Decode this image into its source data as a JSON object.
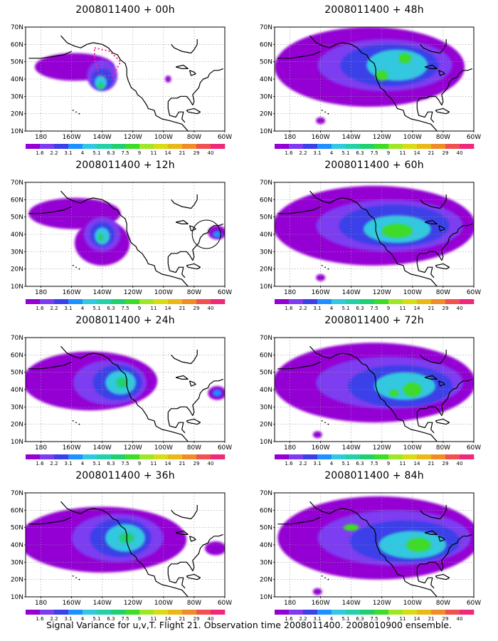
{
  "caption": "Signal Variance for u,v,T. Flight 21. Observation time 2008011400. 2008010900 ensemble.",
  "colorbar": {
    "levels": [
      "1.6",
      "2.2",
      "3.1",
      "4",
      "5.1",
      "6.3",
      "7.5",
      "9",
      "11",
      "14",
      "21",
      "29",
      "40"
    ],
    "colors": [
      "#9400d3",
      "#7d3cf0",
      "#3b40e8",
      "#1e90ff",
      "#32c8e0",
      "#24d0a8",
      "#20d070",
      "#3cdc28",
      "#a0e628",
      "#d8dc14",
      "#eab818",
      "#f08c28",
      "#f05050",
      "#f0287a"
    ]
  },
  "axes": {
    "lat_ticks": [
      "70N",
      "60N",
      "50N",
      "40N",
      "30N",
      "20N",
      "10N"
    ],
    "lon_ticks": [
      "180",
      "160W",
      "140W",
      "120W",
      "100W",
      "80W",
      "60W"
    ],
    "lat_range": [
      10,
      70
    ],
    "lon_range": [
      -190,
      -60
    ]
  },
  "chart_data": [
    {
      "type": "heatmap",
      "title": "2008011400 + 00h",
      "lead_hours": 0,
      "observation_region": "dotted box near 50N 140W",
      "has_circle": false,
      "blobs": [
        {
          "lat": 47,
          "lon": -158,
          "rlat": 8,
          "rlon": 26,
          "level": 0
        },
        {
          "lat": 42,
          "lon": -140,
          "rlat": 9,
          "rlon": 10,
          "level": 1
        },
        {
          "lat": 40,
          "lon": -140,
          "rlat": 6,
          "rlon": 7,
          "level": 2
        },
        {
          "lat": 38,
          "lon": -141,
          "rlat": 4,
          "rlon": 4,
          "level": 4
        },
        {
          "lat": 36,
          "lon": -141,
          "rlat": 2,
          "rlon": 2,
          "level": 6
        },
        {
          "lat": 40,
          "lon": -97,
          "rlat": 2,
          "rlon": 2,
          "level": 0
        }
      ]
    },
    {
      "type": "heatmap",
      "title": "2008011400 + 12h",
      "lead_hours": 12,
      "has_circle": true,
      "blobs": [
        {
          "lat": 52,
          "lon": -158,
          "rlat": 9,
          "rlon": 30,
          "level": 0
        },
        {
          "lat": 35,
          "lon": -140,
          "rlat": 13,
          "rlon": 18,
          "level": 0
        },
        {
          "lat": 40,
          "lon": -140,
          "rlat": 10,
          "rlon": 12,
          "level": 1
        },
        {
          "lat": 40,
          "lon": -140,
          "rlat": 7,
          "rlon": 8,
          "level": 2
        },
        {
          "lat": 39,
          "lon": -140,
          "rlat": 5,
          "rlon": 5,
          "level": 4
        },
        {
          "lat": 38,
          "lon": -141,
          "rlat": 2,
          "rlon": 2,
          "level": 6
        },
        {
          "lat": 41,
          "lon": -65,
          "rlat": 4,
          "rlon": 6,
          "level": 0
        },
        {
          "lat": 40,
          "lon": -65,
          "rlat": 2,
          "rlon": 3,
          "level": 3
        }
      ]
    },
    {
      "type": "heatmap",
      "title": "2008011400 + 24h",
      "lead_hours": 24,
      "has_circle": false,
      "blobs": [
        {
          "lat": 45,
          "lon": -148,
          "rlat": 17,
          "rlon": 44,
          "level": 0
        },
        {
          "lat": 44,
          "lon": -135,
          "rlat": 13,
          "rlon": 24,
          "level": 1
        },
        {
          "lat": 44,
          "lon": -130,
          "rlat": 10,
          "rlon": 16,
          "level": 2
        },
        {
          "lat": 44,
          "lon": -128,
          "rlat": 7,
          "rlon": 10,
          "level": 4
        },
        {
          "lat": 44,
          "lon": -127,
          "rlat": 3,
          "rlon": 4,
          "level": 6
        },
        {
          "lat": 38,
          "lon": -65,
          "rlat": 4,
          "rlon": 6,
          "level": 0
        },
        {
          "lat": 38,
          "lon": -65,
          "rlat": 2,
          "rlon": 3,
          "level": 3
        }
      ]
    },
    {
      "type": "heatmap",
      "title": "2008011400 + 36h",
      "lead_hours": 36,
      "has_circle": false,
      "blobs": [
        {
          "lat": 43,
          "lon": -140,
          "rlat": 19,
          "rlon": 55,
          "level": 0
        },
        {
          "lat": 44,
          "lon": -130,
          "rlat": 14,
          "rlon": 30,
          "level": 1
        },
        {
          "lat": 44,
          "lon": -128,
          "rlat": 11,
          "rlon": 20,
          "level": 2
        },
        {
          "lat": 44,
          "lon": -125,
          "rlat": 8,
          "rlon": 13,
          "level": 4
        },
        {
          "lat": 44,
          "lon": -124,
          "rlat": 3,
          "rlon": 5,
          "level": 6
        },
        {
          "lat": 38,
          "lon": -66,
          "rlat": 4,
          "rlon": 7,
          "level": 0
        }
      ]
    },
    {
      "type": "heatmap",
      "title": "2008011400 + 48h",
      "lead_hours": 48,
      "has_circle": false,
      "blobs": [
        {
          "lat": 47,
          "lon": -128,
          "rlat": 23,
          "rlon": 62,
          "level": 0
        },
        {
          "lat": 48,
          "lon": -118,
          "rlat": 15,
          "rlon": 44,
          "level": 1
        },
        {
          "lat": 48,
          "lon": -115,
          "rlat": 12,
          "rlon": 32,
          "level": 2
        },
        {
          "lat": 48,
          "lon": -110,
          "rlat": 9,
          "rlon": 20,
          "level": 4
        },
        {
          "lat": 42,
          "lon": -120,
          "rlat": 3,
          "rlon": 4,
          "level": 7
        },
        {
          "lat": 52,
          "lon": -105,
          "rlat": 3,
          "rlon": 4,
          "level": 7
        },
        {
          "lat": 16,
          "lon": -160,
          "rlat": 2,
          "rlon": 3,
          "level": 0
        }
      ]
    },
    {
      "type": "heatmap",
      "title": "2008011400 + 60h",
      "lead_hours": 60,
      "has_circle": false,
      "blobs": [
        {
          "lat": 45,
          "lon": -125,
          "rlat": 23,
          "rlon": 66,
          "level": 0
        },
        {
          "lat": 45,
          "lon": -115,
          "rlat": 15,
          "rlon": 48,
          "level": 1
        },
        {
          "lat": 45,
          "lon": -112,
          "rlat": 12,
          "rlon": 36,
          "level": 2
        },
        {
          "lat": 43,
          "lon": -110,
          "rlat": 8,
          "rlon": 22,
          "level": 4
        },
        {
          "lat": 42,
          "lon": -110,
          "rlat": 4,
          "rlon": 10,
          "level": 7
        },
        {
          "lat": 15,
          "lon": -160,
          "rlat": 2,
          "rlon": 3,
          "level": 0
        }
      ]
    },
    {
      "type": "heatmap",
      "title": "2008011400 + 72h",
      "lead_hours": 72,
      "has_circle": false,
      "blobs": [
        {
          "lat": 44,
          "lon": -125,
          "rlat": 23,
          "rlon": 66,
          "level": 0
        },
        {
          "lat": 44,
          "lon": -115,
          "rlat": 15,
          "rlon": 48,
          "level": 1
        },
        {
          "lat": 42,
          "lon": -108,
          "rlat": 12,
          "rlon": 34,
          "level": 2
        },
        {
          "lat": 42,
          "lon": -105,
          "rlat": 8,
          "rlon": 20,
          "level": 4
        },
        {
          "lat": 40,
          "lon": -100,
          "rlat": 4,
          "rlon": 6,
          "level": 7
        },
        {
          "lat": 38,
          "lon": -112,
          "rlat": 2,
          "rlon": 3,
          "level": 7
        },
        {
          "lat": 14,
          "lon": -162,
          "rlat": 2,
          "rlon": 3,
          "level": 0
        }
      ]
    },
    {
      "type": "heatmap",
      "title": "2008011400 + 84h",
      "lead_hours": 84,
      "has_circle": false,
      "blobs": [
        {
          "lat": 44,
          "lon": -122,
          "rlat": 24,
          "rlon": 66,
          "level": 0
        },
        {
          "lat": 44,
          "lon": -112,
          "rlat": 16,
          "rlon": 50,
          "level": 1
        },
        {
          "lat": 42,
          "lon": -105,
          "rlat": 12,
          "rlon": 36,
          "level": 2
        },
        {
          "lat": 40,
          "lon": -100,
          "rlat": 8,
          "rlon": 22,
          "level": 4
        },
        {
          "lat": 40,
          "lon": -96,
          "rlat": 4,
          "rlon": 8,
          "level": 7
        },
        {
          "lat": 50,
          "lon": -140,
          "rlat": 2,
          "rlon": 5,
          "level": 7
        },
        {
          "lat": 13,
          "lon": -162,
          "rlat": 2,
          "rlon": 3,
          "level": 0
        }
      ]
    }
  ]
}
